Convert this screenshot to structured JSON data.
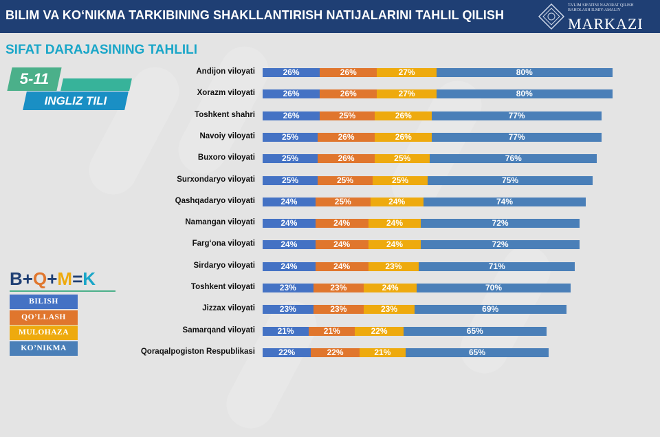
{
  "header": {
    "title": "BILIM VA KO‘NIKMA TARKIBINING SHAKLLANTIRISH NATIJALARINI TAHLIL QILISH",
    "logo_word": "MARKAZI",
    "logo_small_1": "TA'LIM SIFATINI NAZORAT QILISH",
    "logo_small_2": "BAHOLASH ILMIY-AMALIY"
  },
  "subtitle": "SIFAT DARAJASINING TAHLILI",
  "badge": {
    "grade": "5-11",
    "subject": "INGLIZ TILI"
  },
  "formula": {
    "b": "B",
    "plus1": "+",
    "q": "Q",
    "plus2": "+",
    "m": "M",
    "eq": "=",
    "k": "K"
  },
  "colors": {
    "header_bg": "#1f3f74",
    "bilish": "#4472c4",
    "qollash": "#e0762d",
    "mulohaza": "#eeaa0e",
    "konikma": "#4a7fb8",
    "accent": "#1aa6c8"
  },
  "chart_data": {
    "type": "bar",
    "stacked": true,
    "orientation": "horizontal",
    "categories": [
      "Andijon viloyati",
      "Xorazm viloyati",
      "Toshkent shahri",
      "Navoiy viloyati",
      "Buxoro viloyati",
      "Surxondaryo viloyati",
      "Qashqadaryo viloyati",
      "Namangan viloyati",
      "Farg‘ona viloyati",
      "Sirdaryo viloyati",
      "Toshkent viloyati",
      "Jizzax viloyati",
      "Samarqand viloyati",
      "Qoraqalpogiston Respublikasi"
    ],
    "series": [
      {
        "name": "BILISH",
        "color": "#4472c4",
        "values": [
          26,
          26,
          26,
          25,
          25,
          25,
          24,
          24,
          24,
          24,
          23,
          23,
          21,
          22
        ]
      },
      {
        "name": "QO’LLASH",
        "color": "#e0762d",
        "values": [
          26,
          26,
          25,
          26,
          26,
          25,
          25,
          24,
          24,
          24,
          23,
          23,
          21,
          22
        ]
      },
      {
        "name": "MULOHAZA",
        "color": "#eeaa0e",
        "values": [
          27,
          27,
          26,
          26,
          25,
          25,
          24,
          24,
          24,
          23,
          24,
          23,
          22,
          21
        ]
      },
      {
        "name": "KO’NIKMA",
        "color": "#4a7fb8",
        "values": [
          80,
          80,
          77,
          77,
          76,
          75,
          74,
          72,
          72,
          71,
          70,
          69,
          65,
          65
        ]
      }
    ],
    "value_suffix": "%",
    "legend_position": "bottom-left",
    "grid": false
  }
}
